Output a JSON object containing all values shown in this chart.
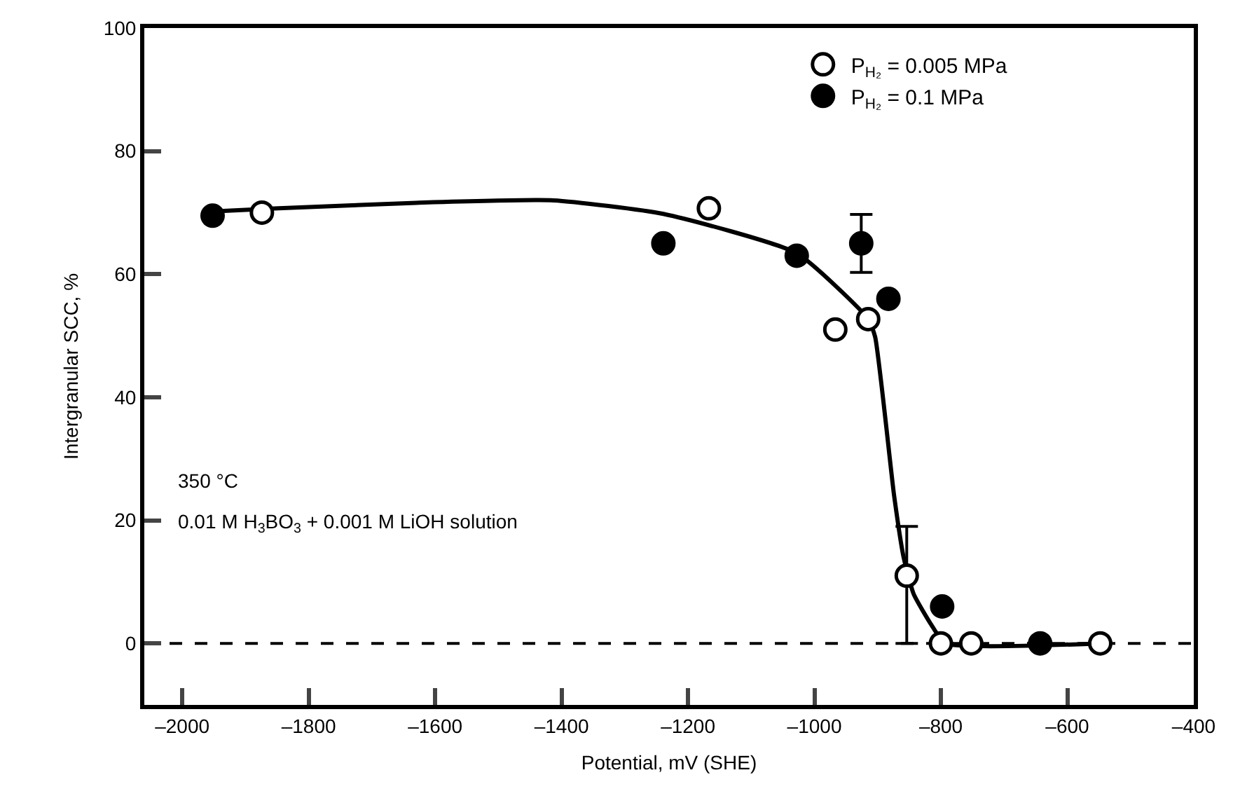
{
  "chart_data": {
    "type": "scatter",
    "xlabel": "Potential, mV (SHE)",
    "ylabel": "Intergranular SCC, %",
    "xlim": [
      -2060,
      -400
    ],
    "xticks": [
      {
        "value": -2000,
        "label": "–2000"
      },
      {
        "value": -1800,
        "label": "–1800"
      },
      {
        "value": -1600,
        "label": "–1600"
      },
      {
        "value": -1400,
        "label": "–1400"
      },
      {
        "value": -1200,
        "label": "–1200"
      },
      {
        "value": -1000,
        "label": "–1000"
      },
      {
        "value": -800,
        "label": "–800"
      },
      {
        "value": -600,
        "label": "–600"
      },
      {
        "value": -400,
        "label": "–400"
      }
    ],
    "ylim": [
      -10,
      100
    ],
    "yticks": [
      0,
      20,
      40,
      60,
      80,
      100
    ],
    "grid": false,
    "legend": "top right",
    "marker": "circle",
    "series": [
      {
        "name": "P$_{H₂}$ = 0.005 MPa",
        "color": "#ffffff",
        "x": [
          -1874,
          -1167,
          -967,
          -915,
          -854,
          -800,
          -752,
          -548
        ],
        "values": [
          70,
          70.7,
          51,
          52.7,
          11,
          0,
          0,
          0
        ],
        "errors": [
          null,
          null,
          null,
          null,
          [
            0,
            19
          ],
          null,
          null,
          null
        ]
      },
      {
        "name": "P$_{H₂}$ = 0.1 MPa",
        "color": "#000000",
        "x": [
          -1952,
          -1239,
          -1028,
          -926,
          -883,
          -798,
          -643
        ],
        "values": [
          69.5,
          65,
          63,
          65,
          56,
          6,
          0
        ],
        "errors": [
          null,
          null,
          null,
          4.7,
          null,
          null,
          null
        ]
      },
      {
        "type": "line",
        "color": "#000000",
        "marker": "none",
        "line_style": "solid",
        "x": [
          -1952,
          -1848,
          -1630,
          -1413,
          -1239,
          -1028,
          -915,
          -904,
          -874,
          -859,
          -843,
          -815,
          -793,
          -548
        ],
        "values": [
          70.2,
          70.7,
          71.6,
          72,
          69.8,
          63.4,
          52.7,
          49.8,
          24,
          14,
          8,
          3,
          0,
          0
        ]
      }
    ],
    "ref_lines": [
      {
        "axis": "y",
        "value": 0,
        "color": "#000000",
        "line_style": "dashed"
      }
    ],
    "annotations": [
      "350 °C",
      "0.01 M H$_{3}$BO$_{3}$ + 0.001 M LiOH solution"
    ]
  }
}
